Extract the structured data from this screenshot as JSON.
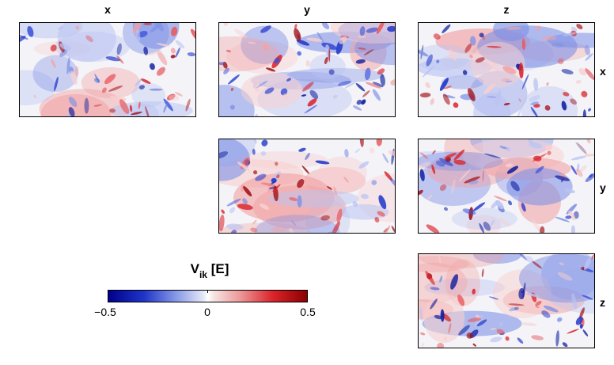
{
  "columns": {
    "c1": "x",
    "c2": "y",
    "c3": "z"
  },
  "rows": {
    "r1": "x",
    "r2": "y",
    "r3": "z"
  },
  "colorbar": {
    "label_main": "V",
    "label_sub": "ik",
    "label_unit": "[E]",
    "tick_min": "−0.5",
    "tick_mid": "0",
    "tick_max": "0.5",
    "range": [
      -0.5,
      0.5
    ],
    "colormap": "blue-white-red",
    "colors": {
      "negative": "#00008b",
      "zero": "#ffffff",
      "positive": "#8b0000"
    }
  },
  "panels": [
    {
      "row": "x",
      "col": "x",
      "seed": 11
    },
    {
      "row": "x",
      "col": "y",
      "seed": 23
    },
    {
      "row": "x",
      "col": "z",
      "seed": 37
    },
    {
      "row": "y",
      "col": "y",
      "seed": 41
    },
    {
      "row": "y",
      "col": "z",
      "seed": 53
    },
    {
      "row": "z",
      "col": "z",
      "seed": 67
    }
  ]
}
